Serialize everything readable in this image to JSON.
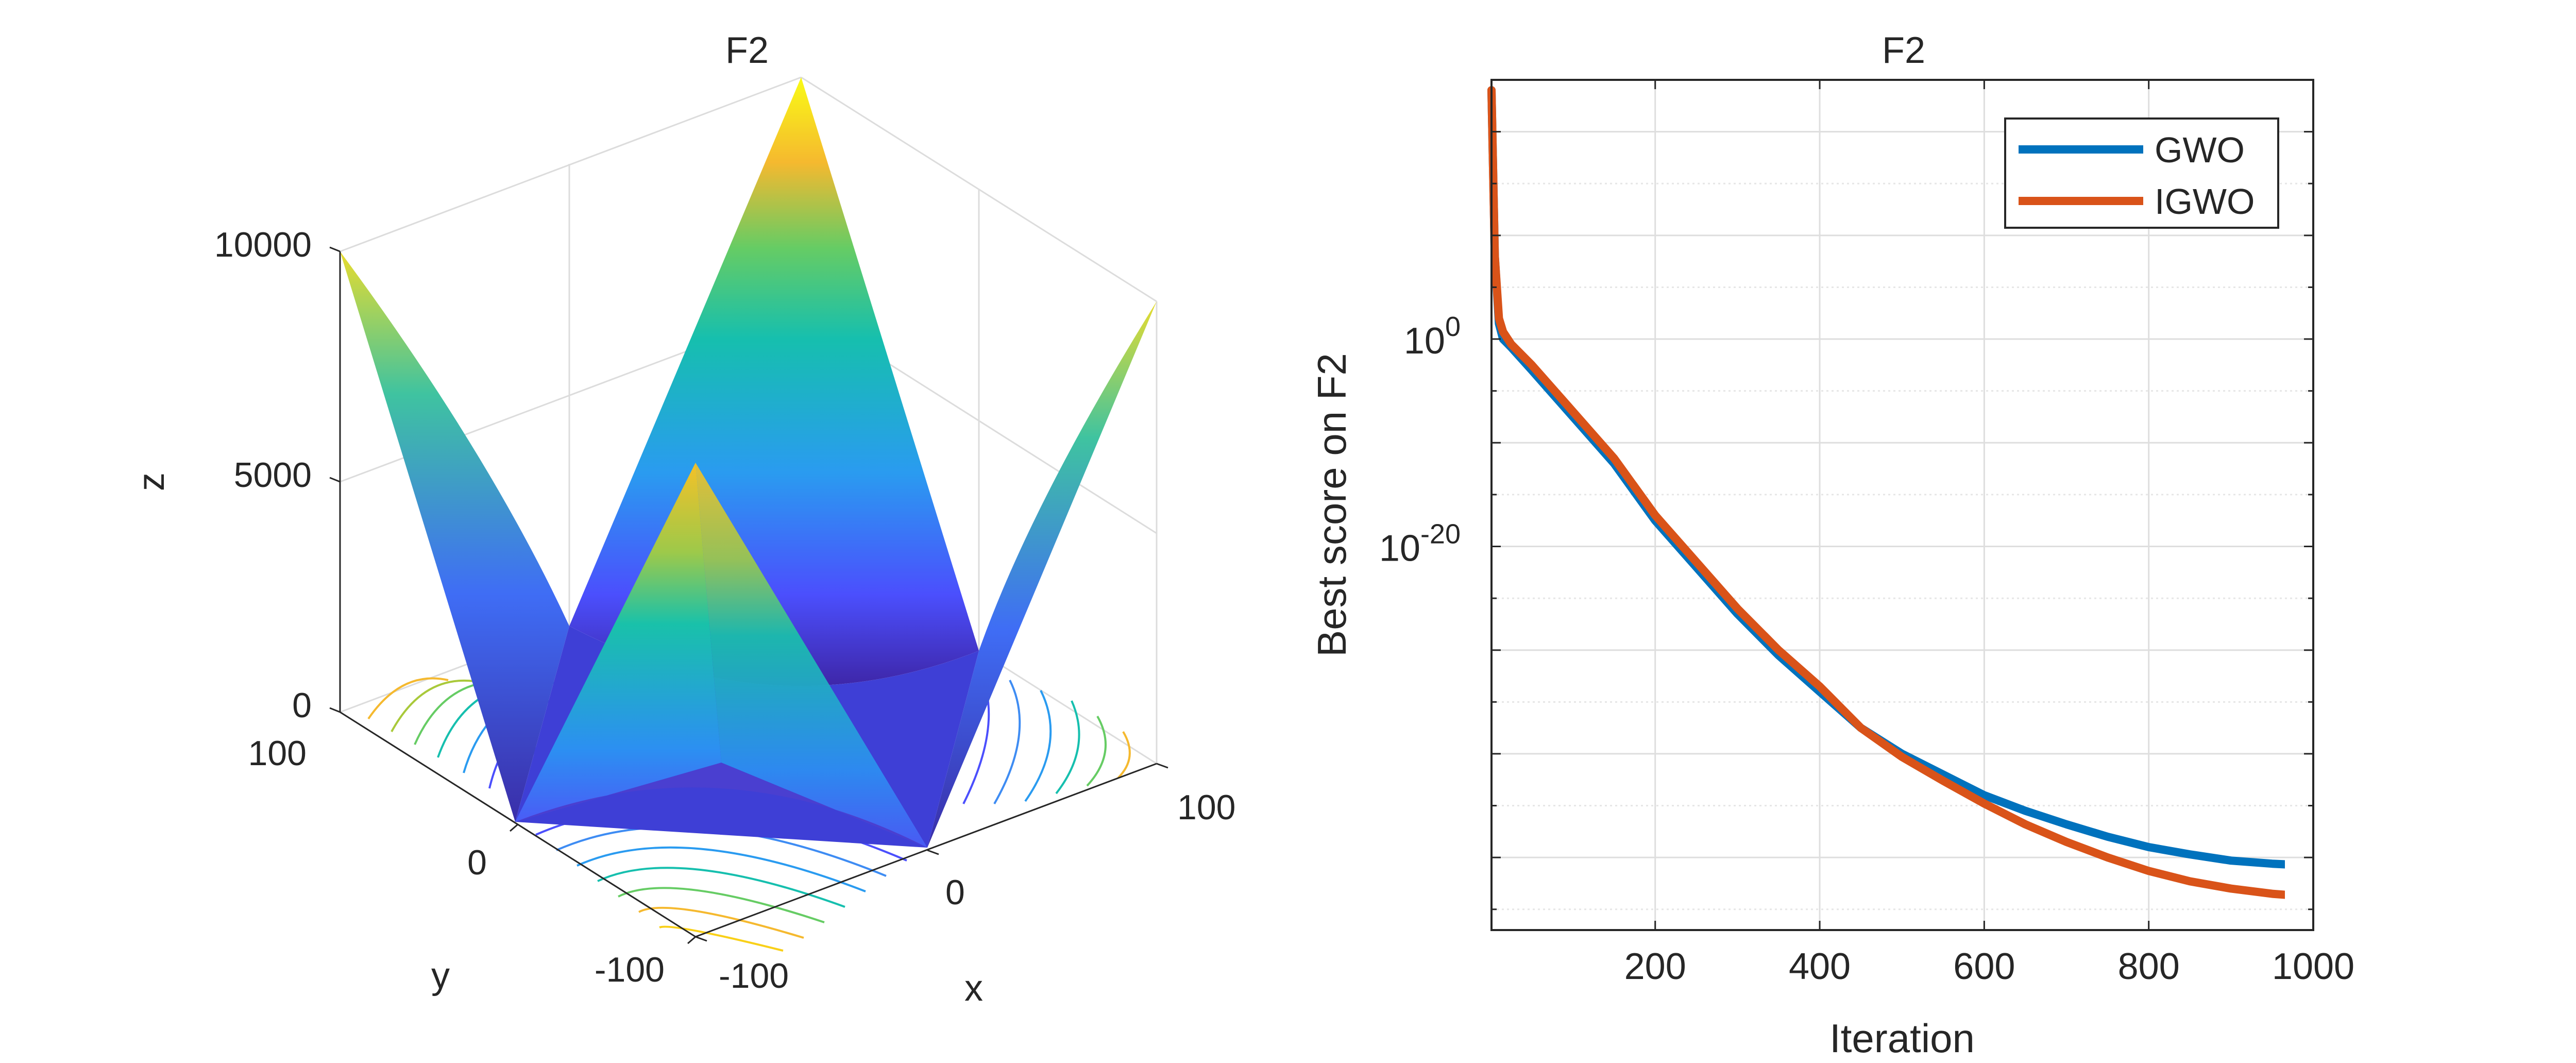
{
  "chart_data": [
    {
      "type": "surface",
      "title": "F2",
      "xlabel": "x",
      "ylabel": "y",
      "zlabel": "z",
      "xlim": [
        -100,
        100
      ],
      "ylim": [
        -100,
        100
      ],
      "zlim": [
        0,
        10000
      ],
      "xticks": [
        {
          "value": -100,
          "label": "-100"
        },
        {
          "value": 0,
          "label": "0"
        },
        {
          "value": 100,
          "label": "100"
        }
      ],
      "yticks": [
        {
          "value": -100,
          "label": "-100"
        },
        {
          "value": 0,
          "label": "0"
        },
        {
          "value": 100,
          "label": "100"
        }
      ],
      "zticks": [
        {
          "value": 0,
          "label": "0"
        },
        {
          "value": 5000,
          "label": "5000"
        },
        {
          "value": 10000,
          "label": "10000"
        }
      ],
      "colormap": [
        "#3e26a8",
        "#4b4ffd",
        "#2a9bf0",
        "#16bfae",
        "#66cc64",
        "#f5b92f",
        "#f9fb15"
      ],
      "grid": true
    },
    {
      "type": "line",
      "title": "F2",
      "xlabel": "Iteration",
      "ylabel": "Best score on F2",
      "yscale": "log",
      "xlim": [
        1,
        1000
      ],
      "ylim_exponent": [
        -57,
        25
      ],
      "xticks": [
        {
          "value": 200,
          "label": "200"
        },
        {
          "value": 400,
          "label": "400"
        },
        {
          "value": 600,
          "label": "600"
        },
        {
          "value": 800,
          "label": "800"
        },
        {
          "value": 1000,
          "label": "1000"
        }
      ],
      "yticks": [
        {
          "exponent": 0,
          "base": "10",
          "sup": "0"
        },
        {
          "exponent": -20,
          "base": "10",
          "sup": "-20"
        }
      ],
      "grid": true,
      "legend_position": "top-right",
      "series": [
        {
          "name": "GWO",
          "color": "#0072bd",
          "x": [
            1,
            5,
            10,
            15,
            25,
            50,
            100,
            150,
            200,
            250,
            300,
            350,
            400,
            450,
            500,
            550,
            600,
            650,
            700,
            750,
            800,
            850,
            900,
            950,
            1000
          ],
          "log10_y": [
            24,
            8,
            1.5,
            0,
            -0.8,
            -3,
            -7.5,
            -12,
            -17.5,
            -22,
            -26.5,
            -30.5,
            -34,
            -37.5,
            -40,
            -42,
            -44,
            -45.5,
            -46.8,
            -48,
            -49,
            -49.7,
            -50.3,
            -50.6,
            -50.8
          ]
        },
        {
          "name": "IGWO",
          "color": "#d95319",
          "x": [
            1,
            5,
            10,
            15,
            25,
            50,
            100,
            150,
            200,
            250,
            300,
            350,
            400,
            450,
            500,
            550,
            600,
            650,
            700,
            750,
            800,
            850,
            900,
            950,
            1000
          ],
          "log10_y": [
            24,
            8,
            2,
            0.7,
            -0.5,
            -2.5,
            -7,
            -11.5,
            -17,
            -21.5,
            -26,
            -30,
            -33.5,
            -37.5,
            -40.3,
            -42.6,
            -44.8,
            -46.8,
            -48.5,
            -50,
            -51.3,
            -52.3,
            -53,
            -53.5,
            -53.8
          ]
        }
      ]
    }
  ]
}
